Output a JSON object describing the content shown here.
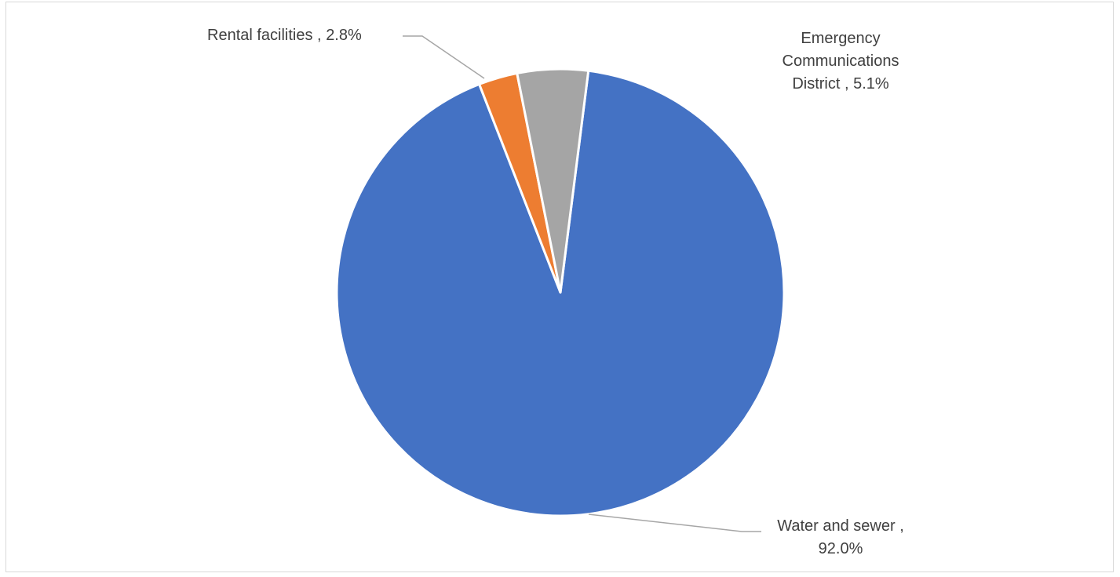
{
  "chart_data": {
    "type": "pie",
    "title": "",
    "start_angle_deg": 7.2,
    "direction": "clockwise",
    "slices": [
      {
        "name": "Water and sewer",
        "value": 92.0,
        "label_name": "Water and sewer ,",
        "label_value": "92.0%",
        "color": "#4472c4"
      },
      {
        "name": "Rental facilities",
        "value": 2.8,
        "label_name": "Rental facilities ,",
        "label_value": "2.8%",
        "color": "#ed7d31"
      },
      {
        "name": "Emergency Communications District",
        "value": 5.1,
        "label_lines": [
          "Emergency",
          "Communications",
          "District , 5.1%"
        ],
        "color": "#a5a5a5"
      }
    ],
    "leader_color": "#a6a6a6",
    "legend": "none"
  }
}
